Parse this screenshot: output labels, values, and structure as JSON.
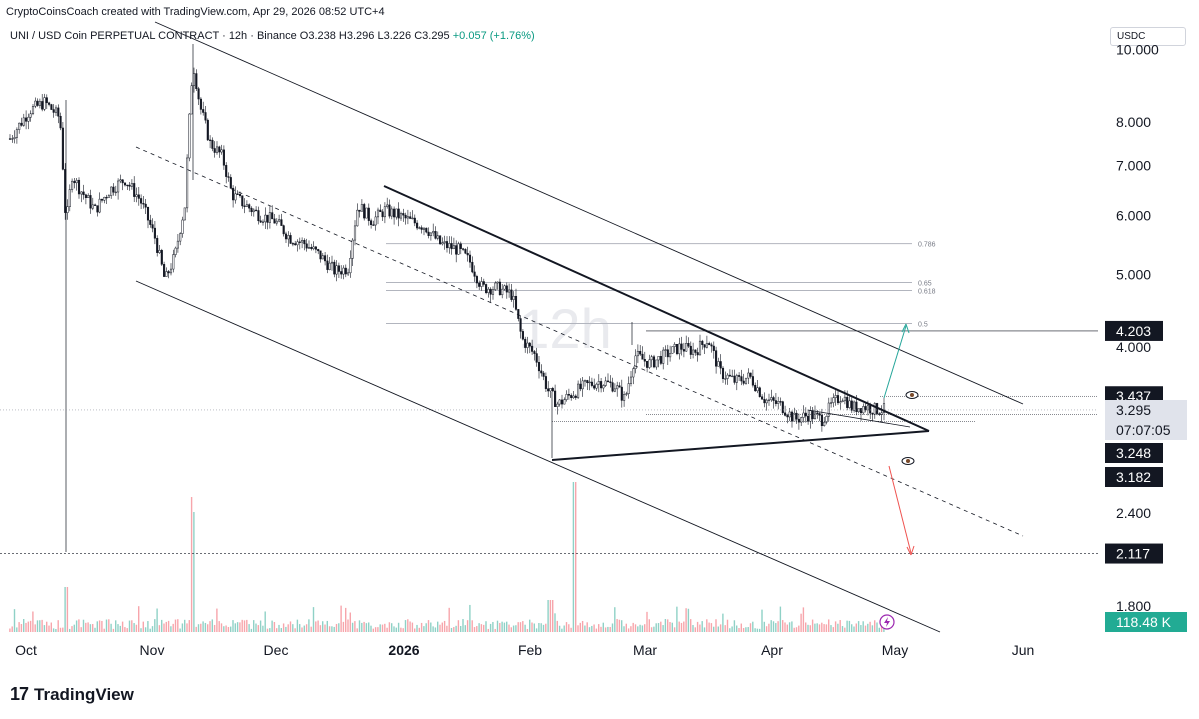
{
  "header": {
    "credit": "CryptoCoinsCoach created with TradingView.com, Apr 29, 2026 08:52 UTC+4",
    "symbol": "UNI / USD Coin PERPETUAL CONTRACT · 12h · Binance",
    "o_label": "O",
    "o_value": "3.238",
    "h_label": "H",
    "h_value": "3.296",
    "l_label": "L",
    "l_value": "3.226",
    "c_label": "C",
    "c_value": "3.295",
    "change": "+0.057 (+1.76%)",
    "quote_currency": "USDC"
  },
  "footer": {
    "logo_text": "TradingView"
  },
  "chart_data": {
    "type": "candlestick",
    "price_axis": {
      "scale": "log",
      "ticks": [
        "10.000",
        "8.000",
        "7.000",
        "6.000",
        "5.000",
        "4.000",
        "2.400",
        "1.800"
      ]
    },
    "time_axis": {
      "ticks": [
        "Oct",
        "Nov",
        "Dec",
        "2026",
        "Feb",
        "Mar",
        "Apr",
        "May",
        "Jun"
      ]
    },
    "watermark": "12h",
    "price_labels": [
      {
        "text": "4.203",
        "style": "dark"
      },
      {
        "text": "3.437",
        "style": "dark"
      },
      {
        "text": "3.295",
        "style": "current"
      },
      {
        "text": "07:07:05",
        "style": "current"
      },
      {
        "text": "3.248",
        "style": "dark"
      },
      {
        "text": "3.182",
        "style": "dark"
      },
      {
        "text": "2.117",
        "style": "dark"
      },
      {
        "text": "118.48 K",
        "style": "volume"
      }
    ],
    "fib_levels": [
      {
        "ratio": "0.786",
        "price": 5.5
      },
      {
        "ratio": "0.65",
        "price": 4.88
      },
      {
        "ratio": "0.618",
        "price": 4.76
      },
      {
        "ratio": "0.5",
        "price": 4.3
      }
    ],
    "levels": [
      4.203,
      3.437,
      3.295,
      3.248,
      3.182,
      2.117
    ],
    "ohlc_last": {
      "open": 3.238,
      "high": 3.296,
      "low": 3.226,
      "close": 3.295,
      "change": 0.057,
      "change_pct": 1.76
    },
    "colors": {
      "up": "#089981",
      "down": "#f23645",
      "line": "#131722",
      "fib": "#b2b5be",
      "target_up": "#26a69a",
      "target_down": "#ef5350"
    }
  }
}
